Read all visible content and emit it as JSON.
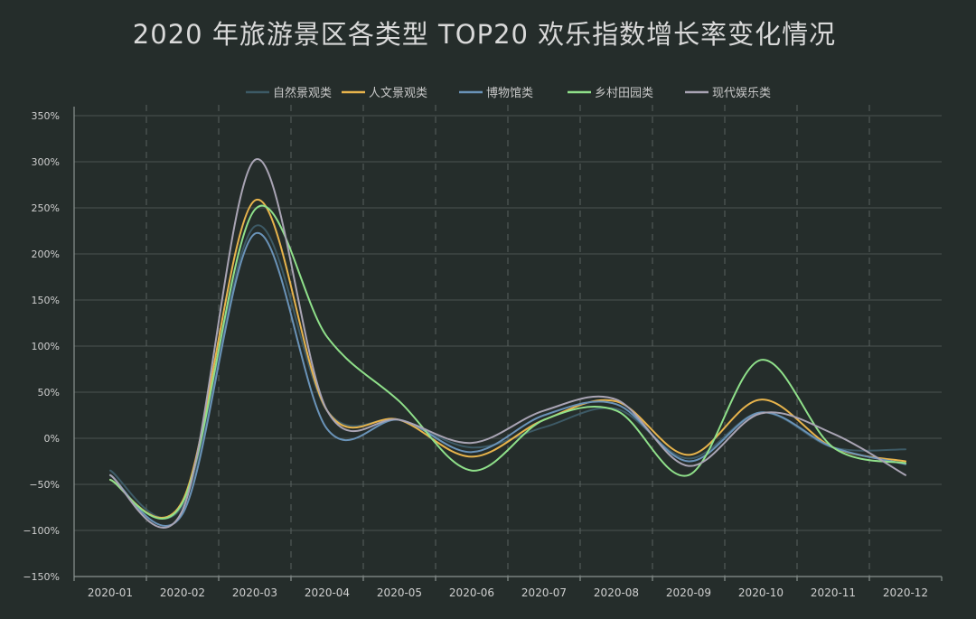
{
  "chart_data": {
    "type": "line",
    "title": "2020 年旅游景区各类型 TOP20 欢乐指数增长率变化情况",
    "xlabel": "",
    "ylabel": "",
    "categories": [
      "2020-01",
      "2020-02",
      "2020-03",
      "2020-04",
      "2020-05",
      "2020-06",
      "2020-07",
      "2020-08",
      "2020-09",
      "2020-10",
      "2020-11",
      "2020-12"
    ],
    "ylim": [
      -150,
      350
    ],
    "yticks": [
      -150,
      -100,
      -50,
      0,
      50,
      100,
      150,
      200,
      250,
      300,
      350
    ],
    "ytick_labels": [
      "−150%",
      "−100%",
      "−50%",
      "0%",
      "50%",
      "100%",
      "150%",
      "200%",
      "250%",
      "300%",
      "350%"
    ],
    "grid": true,
    "legend_position": "top-center",
    "series": [
      {
        "name": "自然景观类",
        "color": "#3d5a66",
        "values": [
          -35,
          -73,
          230,
          30,
          20,
          -10,
          12,
          32,
          -22,
          28,
          -10,
          -12
        ]
      },
      {
        "name": "人文景观类",
        "color": "#e8b44c",
        "values": [
          -45,
          -68,
          258,
          30,
          20,
          -20,
          20,
          40,
          -18,
          42,
          -10,
          -25
        ]
      },
      {
        "name": "博物馆类",
        "color": "#6a93b8",
        "values": [
          -40,
          -82,
          222,
          10,
          20,
          -15,
          25,
          37,
          -25,
          28,
          -10,
          -28
        ]
      },
      {
        "name": "乡村田园类",
        "color": "#8fe08a",
        "values": [
          -45,
          -70,
          248,
          110,
          40,
          -35,
          20,
          30,
          -40,
          85,
          -10,
          -27
        ]
      },
      {
        "name": "现代娱乐类",
        "color": "#a9a4b4",
        "values": [
          -40,
          -78,
          302,
          30,
          20,
          -5,
          30,
          42,
          -30,
          27,
          5,
          -40
        ]
      }
    ]
  }
}
